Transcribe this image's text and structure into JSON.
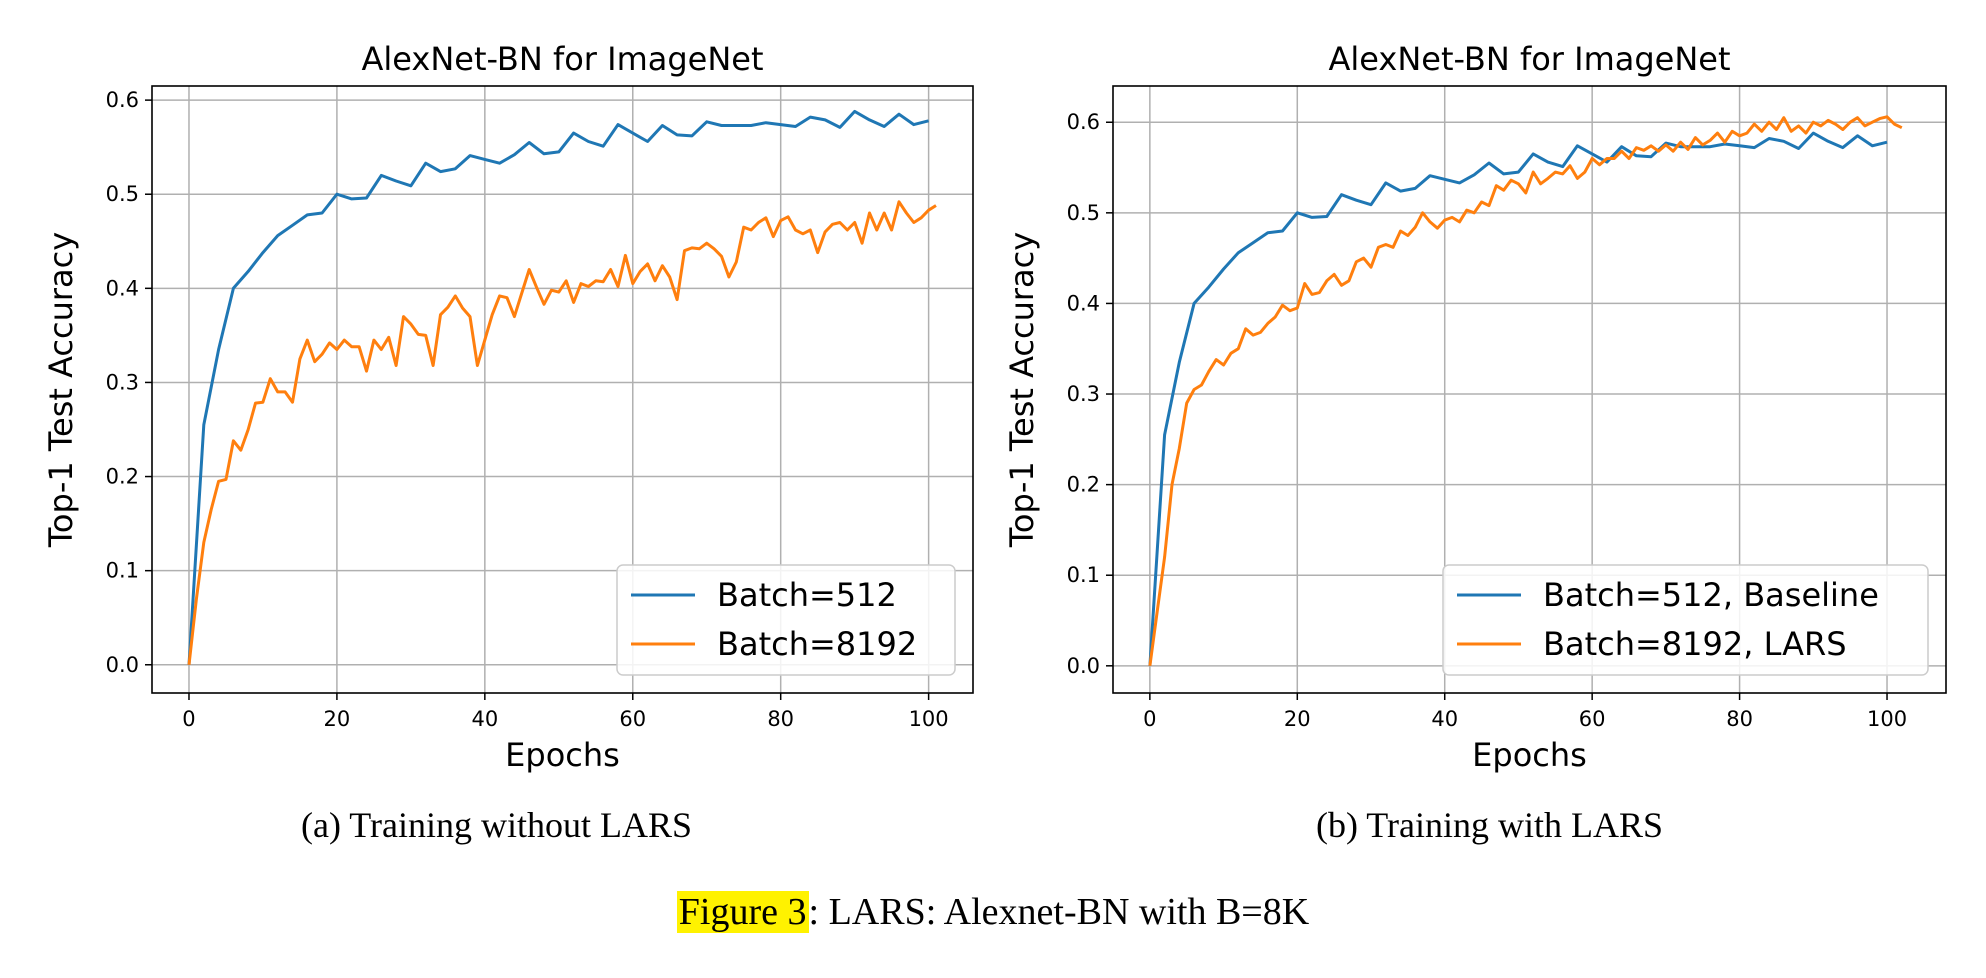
{
  "colors": {
    "baseline": "#1f77b4",
    "lars": "#ff7f0e",
    "highlight": "#fff200"
  },
  "chart_data": [
    {
      "type": "line",
      "title": "AlexNet-BN for ImageNet",
      "xlabel": "Epochs",
      "ylabel": "Top-1 Test Accuracy",
      "xlim": [
        -5,
        106
      ],
      "ylim": [
        -0.03,
        0.615
      ],
      "xticks": [
        0,
        20,
        40,
        60,
        80,
        100
      ],
      "yticks": [
        0.0,
        0.1,
        0.2,
        0.3,
        0.4,
        0.5,
        0.6
      ],
      "grid": true,
      "legend_loc": "lower-right",
      "caption": "(a) Training without LARS",
      "series": [
        {
          "name": "Batch=512",
          "color": "#1f77b4",
          "x": [
            0,
            2,
            4,
            6,
            8,
            10,
            12,
            14,
            16,
            18,
            20,
            22,
            24,
            26,
            28,
            30,
            32,
            34,
            36,
            38,
            40,
            42,
            44,
            46,
            48,
            50,
            52,
            54,
            56,
            58,
            60,
            62,
            64,
            66,
            68,
            70,
            72,
            74,
            76,
            78,
            80,
            82,
            84,
            86,
            88,
            90,
            92,
            94,
            96,
            98,
            100
          ],
          "y": [
            0.0,
            0.255,
            0.335,
            0.4,
            0.418,
            0.438,
            0.456,
            0.467,
            0.478,
            0.48,
            0.5,
            0.495,
            0.496,
            0.52,
            0.514,
            0.509,
            0.533,
            0.524,
            0.527,
            0.541,
            0.537,
            0.533,
            0.542,
            0.555,
            0.543,
            0.545,
            0.565,
            0.556,
            0.551,
            0.574,
            0.565,
            0.556,
            0.573,
            0.563,
            0.562,
            0.577,
            0.573,
            0.573,
            0.573,
            0.576,
            0.574,
            0.572,
            0.582,
            0.579,
            0.571,
            0.588,
            0.579,
            0.572,
            0.585,
            0.574,
            0.578
          ]
        },
        {
          "name": "Batch=8192",
          "color": "#ff7f0e",
          "x": [
            0,
            1,
            2,
            3,
            4,
            5,
            6,
            7,
            8,
            9,
            10,
            11,
            12,
            13,
            14,
            15,
            16,
            17,
            18,
            19,
            20,
            21,
            22,
            23,
            24,
            25,
            26,
            27,
            28,
            29,
            30,
            31,
            32,
            33,
            34,
            35,
            36,
            37,
            38,
            39,
            40,
            41,
            42,
            43,
            44,
            45,
            46,
            47,
            48,
            49,
            50,
            51,
            52,
            53,
            54,
            55,
            56,
            57,
            58,
            59,
            60,
            61,
            62,
            63,
            64,
            65,
            66,
            67,
            68,
            69,
            70,
            71,
            72,
            73,
            74,
            75,
            76,
            77,
            78,
            79,
            80,
            81,
            82,
            83,
            84,
            85,
            86,
            87,
            88,
            89,
            90,
            91,
            92,
            93,
            94,
            95,
            96,
            97,
            98,
            99,
            100,
            101
          ],
          "y": [
            0.0,
            0.07,
            0.13,
            0.165,
            0.195,
            0.197,
            0.238,
            0.228,
            0.25,
            0.278,
            0.279,
            0.304,
            0.29,
            0.29,
            0.279,
            0.325,
            0.345,
            0.322,
            0.33,
            0.342,
            0.335,
            0.345,
            0.338,
            0.338,
            0.312,
            0.345,
            0.335,
            0.348,
            0.318,
            0.37,
            0.362,
            0.351,
            0.35,
            0.318,
            0.372,
            0.38,
            0.392,
            0.379,
            0.37,
            0.318,
            0.345,
            0.372,
            0.392,
            0.39,
            0.37,
            0.395,
            0.42,
            0.401,
            0.383,
            0.398,
            0.396,
            0.408,
            0.385,
            0.405,
            0.402,
            0.408,
            0.407,
            0.42,
            0.402,
            0.435,
            0.405,
            0.418,
            0.426,
            0.408,
            0.424,
            0.412,
            0.388,
            0.44,
            0.443,
            0.442,
            0.448,
            0.442,
            0.434,
            0.412,
            0.428,
            0.465,
            0.462,
            0.47,
            0.475,
            0.455,
            0.472,
            0.476,
            0.462,
            0.458,
            0.462,
            0.438,
            0.46,
            0.468,
            0.47,
            0.462,
            0.47,
            0.448,
            0.48,
            0.462,
            0.48,
            0.462,
            0.492,
            0.48,
            0.47,
            0.475,
            0.483,
            0.488
          ]
        }
      ]
    },
    {
      "type": "line",
      "title": "AlexNet-BN for ImageNet",
      "xlabel": "Epochs",
      "ylabel": "Top-1 Test Accuracy",
      "xlim": [
        -5,
        108
      ],
      "ylim": [
        -0.03,
        0.64
      ],
      "xticks": [
        0,
        20,
        40,
        60,
        80,
        100
      ],
      "yticks": [
        0.0,
        0.1,
        0.2,
        0.3,
        0.4,
        0.5,
        0.6
      ],
      "grid": true,
      "legend_loc": "lower-right",
      "caption": "(b) Training with LARS",
      "series": [
        {
          "name": "Batch=512, Baseline",
          "color": "#1f77b4",
          "x": [
            0,
            2,
            4,
            6,
            8,
            10,
            12,
            14,
            16,
            18,
            20,
            22,
            24,
            26,
            28,
            30,
            32,
            34,
            36,
            38,
            40,
            42,
            44,
            46,
            48,
            50,
            52,
            54,
            56,
            58,
            60,
            62,
            64,
            66,
            68,
            70,
            72,
            74,
            76,
            78,
            80,
            82,
            84,
            86,
            88,
            90,
            92,
            94,
            96,
            98,
            100
          ],
          "y": [
            0.0,
            0.255,
            0.335,
            0.4,
            0.418,
            0.438,
            0.456,
            0.467,
            0.478,
            0.48,
            0.5,
            0.495,
            0.496,
            0.52,
            0.514,
            0.509,
            0.533,
            0.524,
            0.527,
            0.541,
            0.537,
            0.533,
            0.542,
            0.555,
            0.543,
            0.545,
            0.565,
            0.556,
            0.551,
            0.574,
            0.565,
            0.556,
            0.573,
            0.563,
            0.562,
            0.577,
            0.573,
            0.573,
            0.573,
            0.576,
            0.574,
            0.572,
            0.582,
            0.579,
            0.571,
            0.588,
            0.579,
            0.572,
            0.585,
            0.574,
            0.578
          ]
        },
        {
          "name": "Batch=8192, LARS",
          "color": "#ff7f0e",
          "x": [
            0,
            1,
            2,
            3,
            4,
            5,
            6,
            7,
            8,
            9,
            10,
            11,
            12,
            13,
            14,
            15,
            16,
            17,
            18,
            19,
            20,
            21,
            22,
            23,
            24,
            25,
            26,
            27,
            28,
            29,
            30,
            31,
            32,
            33,
            34,
            35,
            36,
            37,
            38,
            39,
            40,
            41,
            42,
            43,
            44,
            45,
            46,
            47,
            48,
            49,
            50,
            51,
            52,
            53,
            54,
            55,
            56,
            57,
            58,
            59,
            60,
            61,
            62,
            63,
            64,
            65,
            66,
            67,
            68,
            69,
            70,
            71,
            72,
            73,
            74,
            75,
            76,
            77,
            78,
            79,
            80,
            81,
            82,
            83,
            84,
            85,
            86,
            87,
            88,
            89,
            90,
            91,
            92,
            93,
            94,
            95,
            96,
            97,
            98,
            99,
            100,
            101,
            102
          ],
          "y": [
            0.0,
            0.06,
            0.12,
            0.2,
            0.24,
            0.29,
            0.305,
            0.31,
            0.325,
            0.338,
            0.332,
            0.345,
            0.35,
            0.372,
            0.365,
            0.368,
            0.378,
            0.385,
            0.398,
            0.392,
            0.395,
            0.422,
            0.41,
            0.412,
            0.425,
            0.432,
            0.42,
            0.425,
            0.446,
            0.45,
            0.44,
            0.462,
            0.465,
            0.462,
            0.48,
            0.475,
            0.484,
            0.5,
            0.49,
            0.483,
            0.492,
            0.495,
            0.49,
            0.503,
            0.5,
            0.512,
            0.508,
            0.53,
            0.525,
            0.536,
            0.532,
            0.522,
            0.545,
            0.532,
            0.538,
            0.545,
            0.543,
            0.552,
            0.538,
            0.545,
            0.56,
            0.553,
            0.56,
            0.56,
            0.568,
            0.56,
            0.572,
            0.569,
            0.574,
            0.568,
            0.575,
            0.568,
            0.578,
            0.57,
            0.583,
            0.575,
            0.58,
            0.588,
            0.578,
            0.59,
            0.585,
            0.588,
            0.598,
            0.59,
            0.6,
            0.592,
            0.605,
            0.59,
            0.596,
            0.588,
            0.6,
            0.596,
            0.602,
            0.598,
            0.592,
            0.6,
            0.605,
            0.596,
            0.6,
            0.604,
            0.606,
            0.598,
            0.594
          ]
        }
      ]
    }
  ],
  "figure_caption": {
    "label": "Figure 3",
    "rest": ":  LARS: Alexnet-BN with B=8K"
  }
}
